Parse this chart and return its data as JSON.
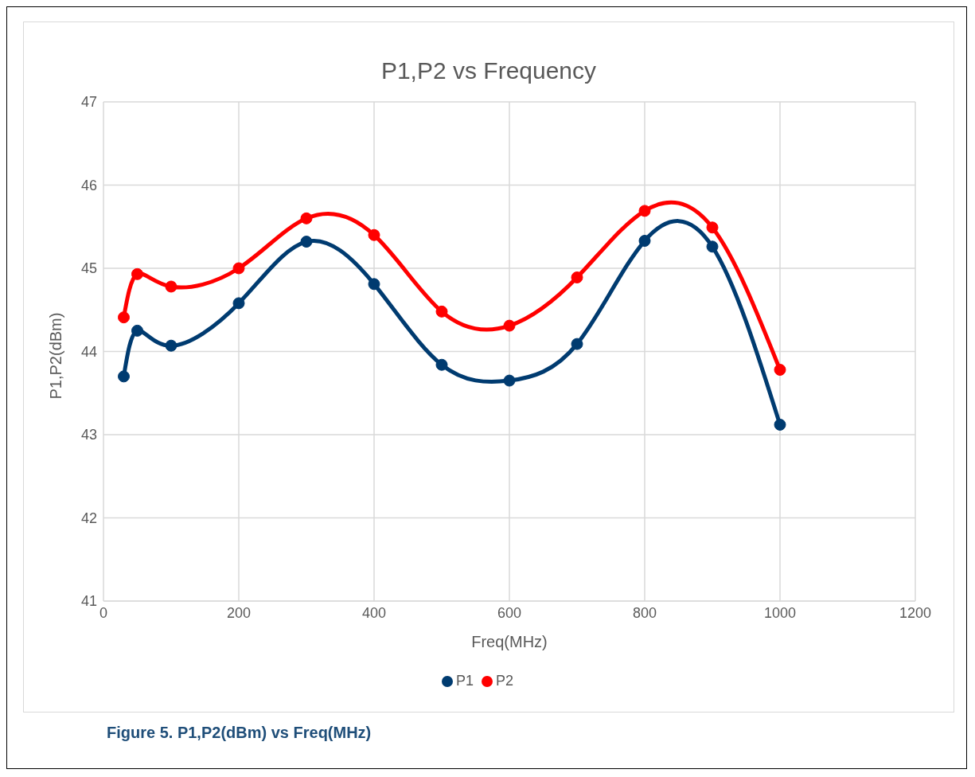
{
  "chart_data": {
    "type": "line",
    "title": "P1,P2 vs Frequency",
    "xlabel": "Freq(MHz)",
    "ylabel": "P1,P2(dBm)",
    "x": [
      30,
      50,
      100,
      200,
      300,
      400,
      500,
      600,
      700,
      800,
      900,
      1000
    ],
    "series": [
      {
        "name": "P1",
        "color": "#003b70",
        "values": [
          43.7,
          44.25,
          44.07,
          44.58,
          45.32,
          44.81,
          43.84,
          43.65,
          44.09,
          45.33,
          45.26,
          43.12
        ]
      },
      {
        "name": "P2",
        "color": "#ff0000",
        "values": [
          44.41,
          44.93,
          44.78,
          45.0,
          45.6,
          45.4,
          44.48,
          44.31,
          44.89,
          45.69,
          45.49,
          43.78
        ]
      }
    ],
    "xlim": [
      0,
      1200
    ],
    "xticks": [
      0,
      200,
      400,
      600,
      800,
      1000,
      1200
    ],
    "ylim": [
      41,
      47
    ],
    "yticks": [
      41,
      42,
      43,
      44,
      45,
      46,
      47
    ],
    "grid": true,
    "legend": "bottom",
    "marker": "circle",
    "line_style": "solid",
    "annotations": [
      "Figure 5. P1,P2(dBm) vs Freq(MHz)"
    ]
  }
}
